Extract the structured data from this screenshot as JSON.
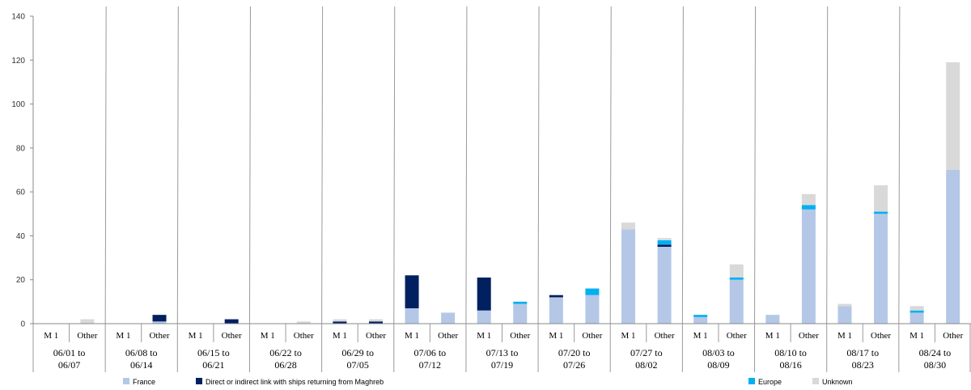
{
  "chart_data": {
    "type": "bar",
    "stacked": true,
    "title": "",
    "xlabel": "",
    "ylabel": "",
    "ylim": [
      0,
      140
    ],
    "yticks": [
      0,
      20,
      40,
      60,
      80,
      100,
      120,
      140
    ],
    "week_groups": [
      "06/01 to 06/07",
      "06/08 to 06/14",
      "06/15 to 06/21",
      "06/22 to 06/28",
      "06/29 to 07/05",
      "07/06 to 07/12",
      "07/13 to 07/19",
      "07/20 to 07/26",
      "07/27 to 08/02",
      "08/03 to 08/09",
      "08/10 to 08/16",
      "08/17 to 08/23",
      "08/24 to 08/30"
    ],
    "subcategories": [
      "M1",
      "Other"
    ],
    "series": [
      {
        "name": "France",
        "color": "#b4c7e7",
        "values": [
          [
            0,
            0
          ],
          [
            0,
            1
          ],
          [
            0,
            0
          ],
          [
            0,
            0
          ],
          [
            0,
            0
          ],
          [
            7,
            5
          ],
          [
            6,
            9
          ],
          [
            12,
            13
          ],
          [
            43,
            35
          ],
          [
            3,
            20
          ],
          [
            4,
            52
          ],
          [
            8,
            50
          ],
          [
            5,
            70
          ]
        ]
      },
      {
        "name": "Direct or indirect link with ships returning from Maghreb",
        "color": "#002060",
        "values": [
          [
            0,
            0
          ],
          [
            0,
            3
          ],
          [
            0,
            2
          ],
          [
            0,
            0
          ],
          [
            1,
            1
          ],
          [
            15,
            0
          ],
          [
            15,
            0
          ],
          [
            1,
            0
          ],
          [
            0,
            1
          ],
          [
            0,
            0
          ],
          [
            0,
            0
          ],
          [
            0,
            0
          ],
          [
            0,
            0
          ]
        ]
      },
      {
        "name": "Europe",
        "color": "#00b0f0",
        "values": [
          [
            0,
            0
          ],
          [
            0,
            0
          ],
          [
            0,
            0
          ],
          [
            0,
            0
          ],
          [
            0,
            0
          ],
          [
            0,
            0
          ],
          [
            0,
            1
          ],
          [
            0,
            3
          ],
          [
            0,
            2
          ],
          [
            1,
            1
          ],
          [
            0,
            2
          ],
          [
            0,
            1
          ],
          [
            1,
            0
          ]
        ]
      },
      {
        "name": "Unknown",
        "color": "#d9d9d9",
        "values": [
          [
            0,
            2
          ],
          [
            0,
            0
          ],
          [
            0,
            0
          ],
          [
            0,
            1
          ],
          [
            1,
            1
          ],
          [
            0,
            0
          ],
          [
            0,
            0
          ],
          [
            0,
            0
          ],
          [
            3,
            1
          ],
          [
            0,
            6
          ],
          [
            0,
            5
          ],
          [
            1,
            12
          ],
          [
            2,
            49
          ]
        ]
      }
    ],
    "legend_position": "bottom",
    "grid": false
  },
  "labels": {
    "m1": "M 1",
    "other": "Other"
  }
}
